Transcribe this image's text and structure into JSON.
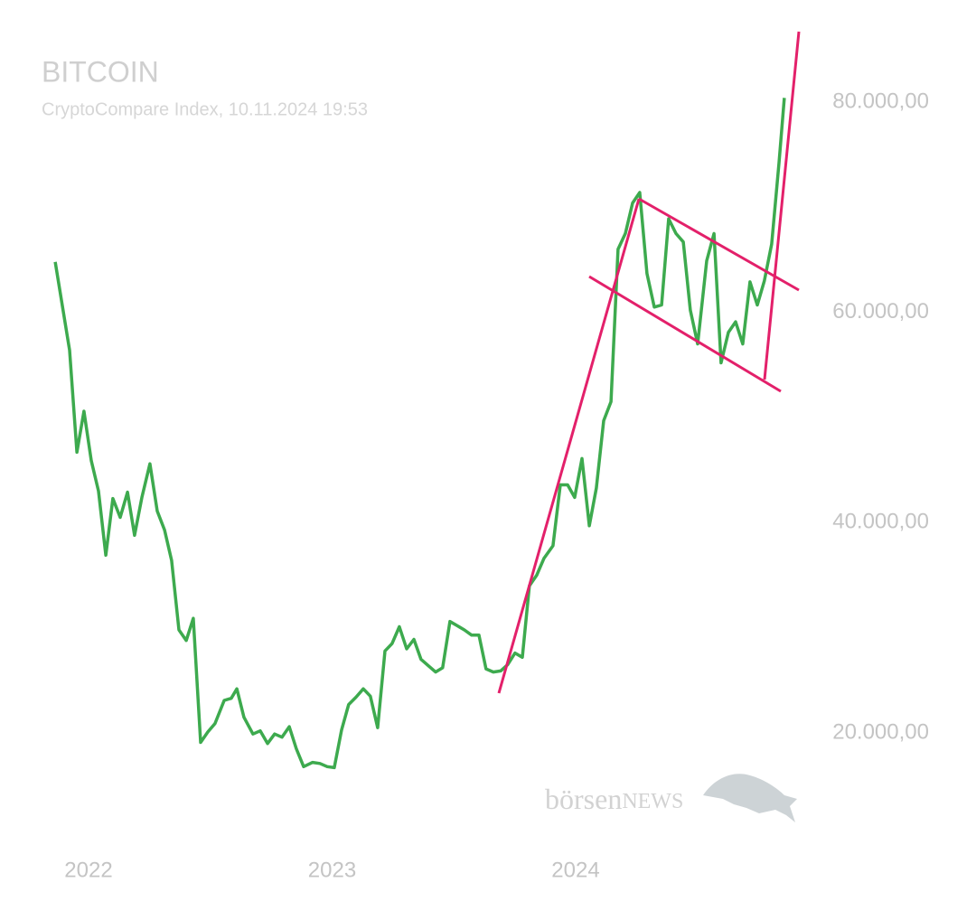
{
  "chart_data": {
    "type": "line",
    "title": "BITCOIN",
    "subtitle": "CryptoCompare Index, 10.11.2024 19:53",
    "watermark": {
      "brand": "börsen",
      "suffix": "NEWS"
    },
    "color": "#3daa4e",
    "x": [
      2021.863,
      2021.922,
      2021.952,
      2021.981,
      2022.011,
      2022.041,
      2022.071,
      2022.1,
      2022.13,
      2022.16,
      2022.189,
      2022.219,
      2022.252,
      2022.282,
      2022.312,
      2022.341,
      2022.371,
      2022.401,
      2022.43,
      2022.46,
      2022.49,
      2022.519,
      2022.557,
      2022.586,
      2022.609,
      2022.638,
      2022.675,
      2022.705,
      2022.735,
      2022.764,
      2022.794,
      2022.824,
      2022.853,
      2022.883,
      2022.92,
      2022.95,
      2022.98,
      2023.009,
      2023.039,
      2023.068,
      2023.098,
      2023.128,
      2023.157,
      2023.187,
      2023.217,
      2023.246,
      2023.276,
      2023.306,
      2023.336,
      2023.365,
      2023.395,
      2023.425,
      2023.454,
      2023.484,
      2023.514,
      2023.543,
      2023.573,
      2023.603,
      2023.632,
      2023.662,
      2023.692,
      2023.721,
      2023.751,
      2023.781,
      2023.81,
      2023.84,
      2023.87,
      2023.907,
      2023.937,
      2023.967,
      2023.996,
      2024.026,
      2024.056,
      2024.085,
      2024.115,
      2024.145,
      2024.174,
      2024.204,
      2024.234,
      2024.263,
      2024.293,
      2024.323,
      2024.353,
      2024.382,
      2024.412,
      2024.442,
      2024.471,
      2024.501,
      2024.538,
      2024.568,
      2024.597,
      2024.627,
      2024.657,
      2024.686,
      2024.716,
      2024.746,
      2024.775,
      2024.805,
      2024.835,
      2024.857
    ],
    "values": [
      64800,
      56400,
      46700,
      50600,
      45900,
      43000,
      36900,
      42300,
      40500,
      42900,
      38800,
      42400,
      45600,
      41100,
      39300,
      36400,
      29800,
      28800,
      30900,
      19100,
      20100,
      20900,
      23100,
      23300,
      24200,
      21500,
      19900,
      20200,
      19000,
      19900,
      19600,
      20600,
      18500,
      16800,
      17200,
      17100,
      16800,
      16700,
      20300,
      22700,
      23400,
      24200,
      23500,
      20500,
      27800,
      28500,
      30100,
      28000,
      28900,
      27000,
      26400,
      25800,
      26200,
      30600,
      30200,
      29800,
      29300,
      29300,
      26100,
      25800,
      25900,
      26500,
      27600,
      27200,
      34000,
      35000,
      36600,
      37800,
      43600,
      43600,
      42400,
      46100,
      39700,
      43300,
      49700,
      51500,
      66000,
      67500,
      70400,
      71400,
      63700,
      60500,
      60700,
      68900,
      67500,
      66700,
      60200,
      57000,
      64900,
      67500,
      55200,
      58100,
      59100,
      57000,
      62900,
      60700,
      63000,
      66500,
      74200,
      80400
    ],
    "xlim": [
      2021.8,
      2024.95
    ],
    "xticks": [
      2022,
      2023,
      2024
    ],
    "ylim": [
      10000,
      87000
    ],
    "yticks": [
      {
        "value": 20000,
        "label": "20.000,00"
      },
      {
        "value": 40000,
        "label": "40.000,00"
      },
      {
        "value": 60000,
        "label": "60.000,00"
      },
      {
        "value": 80000,
        "label": "80.000,00"
      }
    ],
    "grid": false
  }
}
